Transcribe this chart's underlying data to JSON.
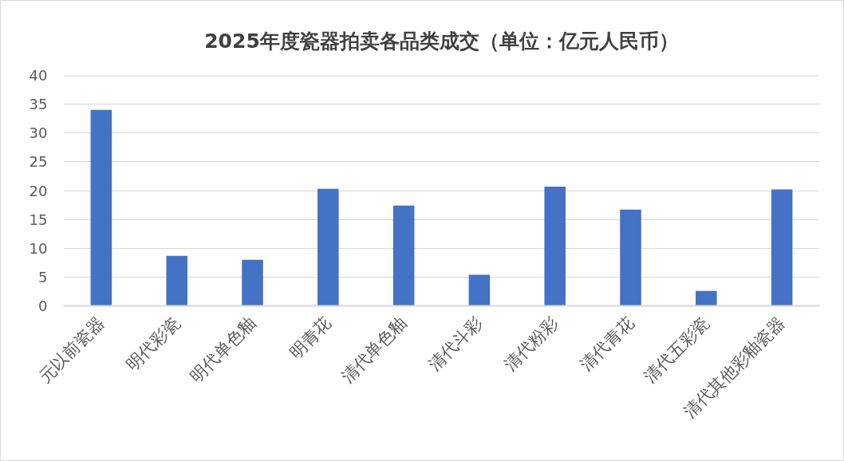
{
  "chart_data": {
    "type": "bar",
    "title": "2025年度瓷器拍卖各品类成交（单位：亿元人民币）",
    "categories": [
      "元以前瓷器",
      "明代彩瓷",
      "明代单色釉",
      "明青花",
      "清代单色釉",
      "清代斗彩",
      "清代粉彩",
      "清代青花",
      "清代五彩瓷",
      "清代其他彩釉瓷器"
    ],
    "values": [
      34.0,
      8.7,
      8.0,
      20.3,
      17.4,
      5.4,
      20.7,
      16.7,
      2.6,
      20.2
    ],
    "color": "#4472c4",
    "ylim": [
      0,
      40
    ],
    "yticks": [
      0,
      5,
      10,
      15,
      20,
      25,
      30,
      35,
      40
    ],
    "grid": "y"
  }
}
